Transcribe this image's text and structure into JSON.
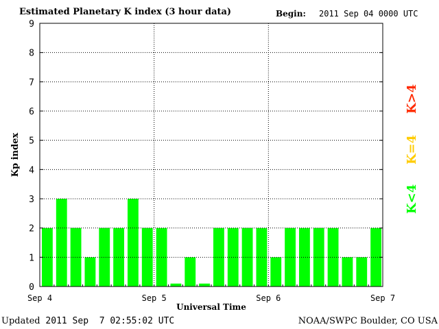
{
  "header": {
    "title": "Estimated Planetary K index (3 hour data)",
    "begin_label": "Begin:",
    "begin_value": "2011 Sep 04 0000 UTC"
  },
  "footer": {
    "updated_label": "Updated",
    "updated_value": "2011 Sep  7 02:55:02 UTC",
    "source": "NOAA/SWPC Boulder, CO USA"
  },
  "legend": {
    "items": [
      {
        "label": "K<4",
        "color": "#00ff00"
      },
      {
        "label": "K=4",
        "color": "#ffcc00"
      },
      {
        "label": "K>4",
        "color": "#ff2a00"
      }
    ]
  },
  "chart_data": {
    "type": "bar",
    "title": "Estimated Planetary K index (3 hour data)",
    "xlabel": "Universal Time",
    "ylabel": "Kp index",
    "ylim": [
      0,
      9
    ],
    "yticks": [
      0,
      1,
      2,
      3,
      4,
      5,
      6,
      7,
      8,
      9
    ],
    "xtick_labels": [
      "Sep 4",
      "Sep 5",
      "Sep 6",
      "Sep 7"
    ],
    "grid": true,
    "bar_color": "#00ff00",
    "series": [
      {
        "values": [
          2,
          3,
          2,
          1,
          2,
          2,
          3,
          2,
          2,
          0.1,
          1,
          0.1,
          2,
          2,
          2,
          2,
          1,
          2,
          2,
          2,
          2,
          1,
          1,
          2
        ]
      }
    ]
  }
}
